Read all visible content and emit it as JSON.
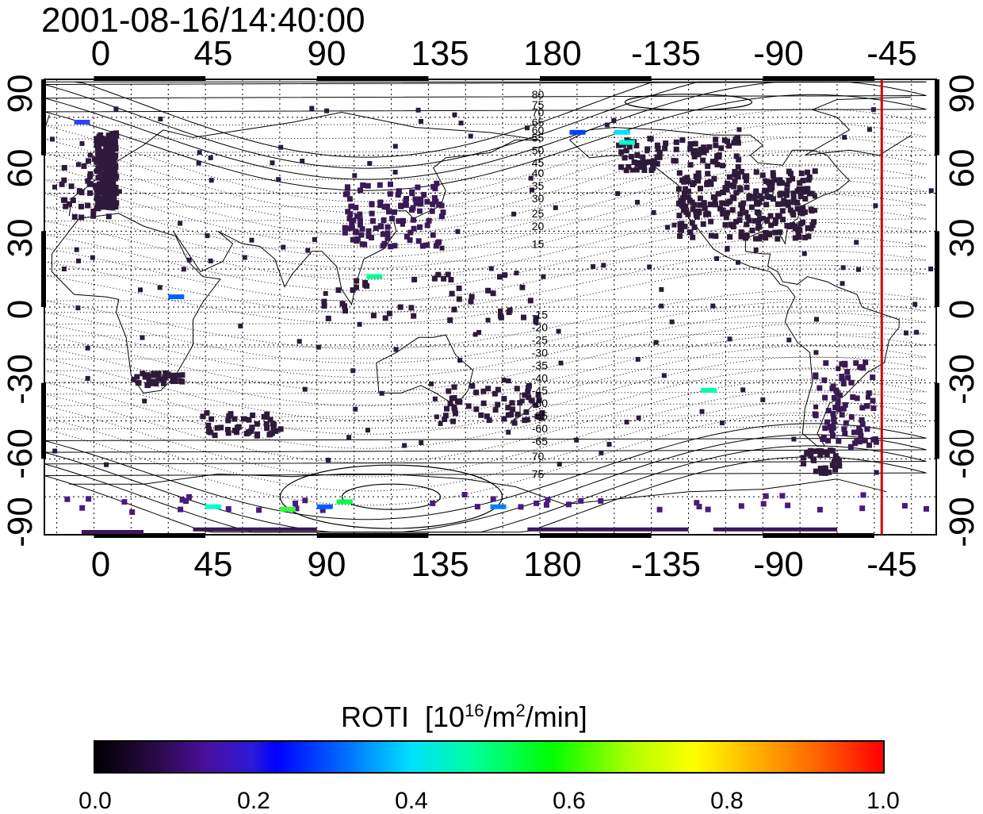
{
  "title": "2001-08-16/14:40:00",
  "lon_ticks": [
    "0",
    "45",
    "90",
    "135",
    "180",
    "-135",
    "-90",
    "-45"
  ],
  "lat_ticks": [
    "90",
    "60",
    "30",
    "0",
    "-30",
    "-60",
    "-90"
  ],
  "contour_labels_north": [
    "80",
    "75",
    "70",
    "65",
    "60",
    "55",
    "50",
    "45",
    "40",
    "35",
    "30",
    "25",
    "20",
    "15"
  ],
  "contour_labels_south": [
    "-15",
    "-20",
    "-25",
    "-30",
    "-35",
    "-40",
    "-45",
    "-50",
    "-55",
    "-60",
    "-65",
    "70",
    "75"
  ],
  "colorbar": {
    "label": "ROTI",
    "unit_prefix": "[10",
    "unit_exp": "16",
    "unit_mid": "/m",
    "unit_exp2": "2",
    "unit_suffix": "/min]",
    "ticks": [
      "0.0",
      "0.2",
      "0.4",
      "0.6",
      "0.8",
      "1.0"
    ],
    "range": [
      0.0,
      1.0
    ],
    "colors": [
      "#000000",
      "#4a0f9a",
      "#0000ff",
      "#00e0ff",
      "#00ff00",
      "#ffff00",
      "#ff0000"
    ]
  },
  "map": {
    "lon_range": [
      -20,
      340
    ],
    "lat_range": [
      -90,
      90
    ],
    "meridian_line_lon": -42,
    "meridian_line_color": "#cc0000",
    "dot_color": "#2e1a3a",
    "grid": true
  }
}
